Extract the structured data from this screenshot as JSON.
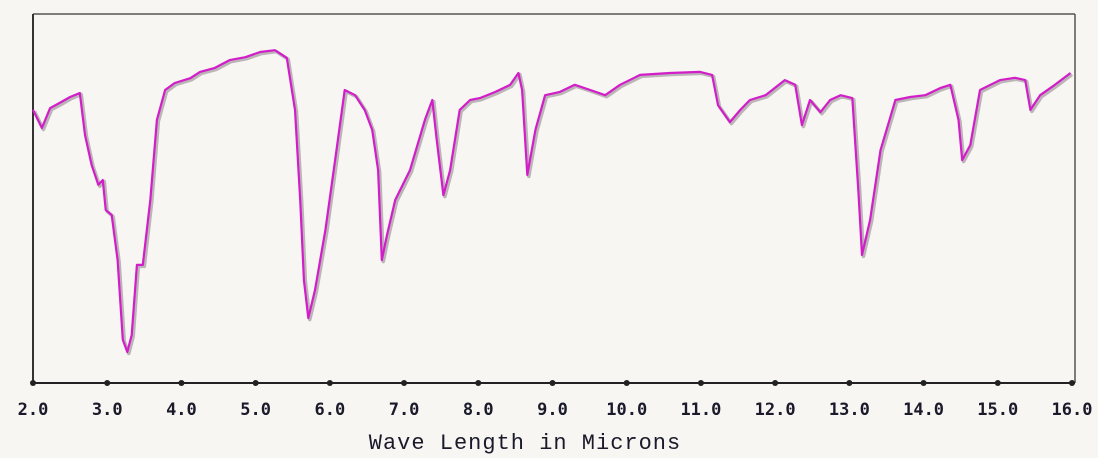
{
  "chart_data": {
    "type": "line",
    "x_label": "Wave Length in Microns",
    "xlim": [
      2,
      16
    ],
    "ylim": [
      0,
      100
    ],
    "xticks": [
      {
        "value": 2,
        "label": "2.0"
      },
      {
        "value": 3,
        "label": "3.0"
      },
      {
        "value": 4,
        "label": "4.0"
      },
      {
        "value": 5,
        "label": "5.0"
      },
      {
        "value": 6,
        "label": "6.0"
      },
      {
        "value": 7,
        "label": "7.0"
      },
      {
        "value": 8,
        "label": "8.0"
      },
      {
        "value": 9,
        "label": "9.0"
      },
      {
        "value": 10,
        "label": "10.0"
      },
      {
        "value": 11,
        "label": "11.0"
      },
      {
        "value": 12,
        "label": "12.0"
      },
      {
        "value": 13,
        "label": "13.0"
      },
      {
        "value": 14,
        "label": "14.0"
      },
      {
        "value": 15,
        "label": "15.0"
      },
      {
        "value": 16,
        "label": "16.0"
      }
    ],
    "color": "#d21ec8",
    "x": [
      2.0,
      2.12,
      2.23,
      2.36,
      2.5,
      2.63,
      2.7,
      2.79,
      2.88,
      2.94,
      2.98,
      3.06,
      3.14,
      3.21,
      3.27,
      3.33,
      3.4,
      3.48,
      3.58,
      3.67,
      3.78,
      3.91,
      4.12,
      4.25,
      4.45,
      4.65,
      4.86,
      5.06,
      5.26,
      5.42,
      5.53,
      5.6,
      5.65,
      5.71,
      5.8,
      5.94,
      6.07,
      6.2,
      6.34,
      6.47,
      6.57,
      6.65,
      6.7,
      6.77,
      6.88,
      7.08,
      7.28,
      7.38,
      7.44,
      7.53,
      7.62,
      7.75,
      7.89,
      8.02,
      8.23,
      8.43,
      8.54,
      8.59,
      8.66,
      8.77,
      8.9,
      9.1,
      9.3,
      9.51,
      9.71,
      9.91,
      10.18,
      10.58,
      10.99,
      11.15,
      11.23,
      11.39,
      11.53,
      11.66,
      11.87,
      12.13,
      12.27,
      12.36,
      12.47,
      12.61,
      12.74,
      12.88,
      13.04,
      13.12,
      13.17,
      13.28,
      13.42,
      13.62,
      13.82,
      14.02,
      14.22,
      14.36,
      14.47,
      14.52,
      14.63,
      14.76,
      14.9,
      15.03,
      15.23,
      15.37,
      15.44,
      15.57,
      15.77,
      15.98
    ],
    "values": [
      74.0,
      69.1,
      74.5,
      75.9,
      77.5,
      78.6,
      67.2,
      59.1,
      53.7,
      55.0,
      46.9,
      45.5,
      33.3,
      11.7,
      8.4,
      13.0,
      32.0,
      32.0,
      49.6,
      71.3,
      79.4,
      81.3,
      82.6,
      84.3,
      85.4,
      87.5,
      88.3,
      89.7,
      90.2,
      88.1,
      74.0,
      49.6,
      27.9,
      17.6,
      25.2,
      41.5,
      60.4,
      79.4,
      78.0,
      74.0,
      68.6,
      57.7,
      33.3,
      40.1,
      49.6,
      57.7,
      71.3,
      76.7,
      65.9,
      50.9,
      57.7,
      74.0,
      76.7,
      77.2,
      78.9,
      80.8,
      84.0,
      79.4,
      56.4,
      68.6,
      78.0,
      78.9,
      80.8,
      79.4,
      78.0,
      80.8,
      83.5,
      84.0,
      84.3,
      83.5,
      75.3,
      70.7,
      74.0,
      76.7,
      78.0,
      82.1,
      80.8,
      69.9,
      76.7,
      73.4,
      76.7,
      78.0,
      77.2,
      52.3,
      34.7,
      44.2,
      63.1,
      76.7,
      77.5,
      78.0,
      79.9,
      80.8,
      71.3,
      60.4,
      64.5,
      79.4,
      80.8,
      82.1,
      82.7,
      82.1,
      74.0,
      78.0,
      80.8,
      84.0
    ]
  }
}
